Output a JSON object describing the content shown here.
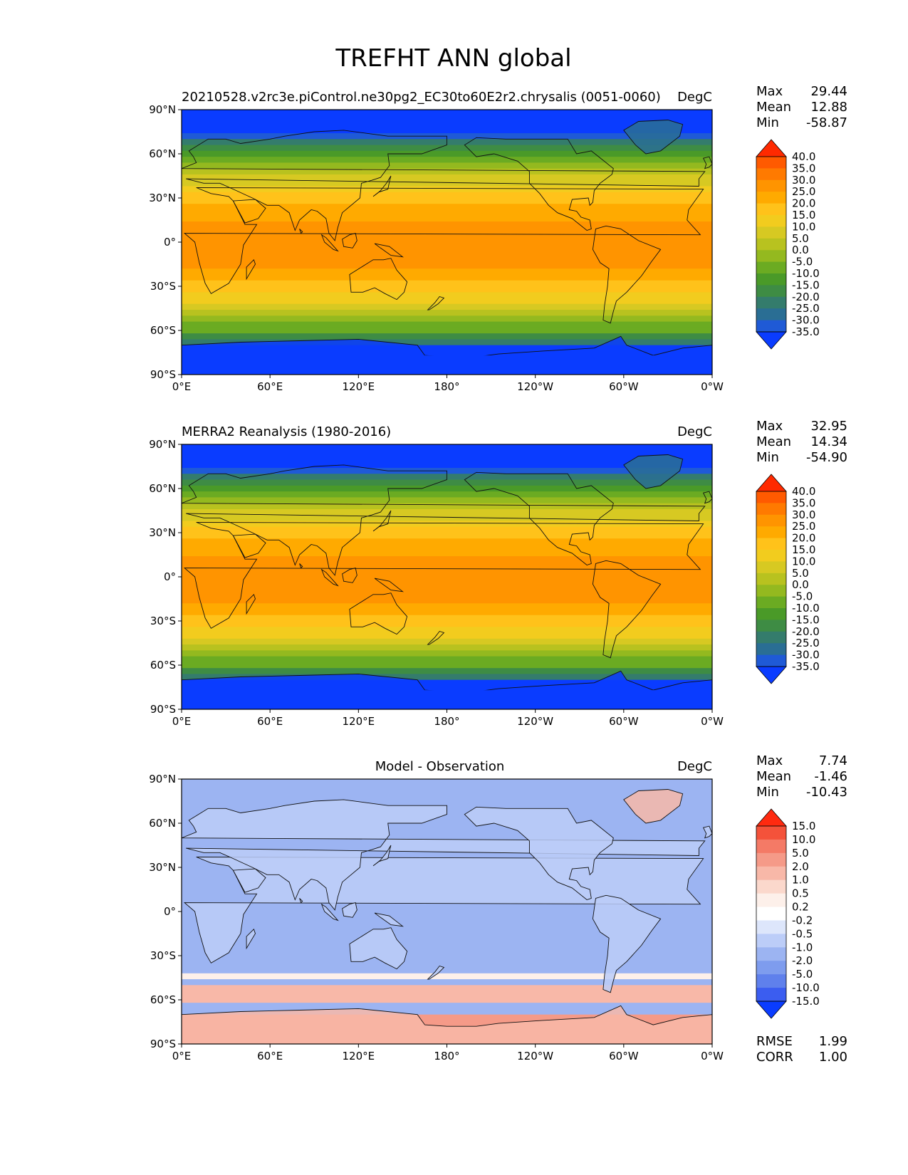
{
  "figure_title": "TREFHT ANN global",
  "lat_ticks": [
    "90°N",
    "60°N",
    "30°N",
    "0°",
    "30°S",
    "60°S",
    "90°S"
  ],
  "lon_ticks": [
    "0°E",
    "60°E",
    "120°E",
    "180°",
    "120°W",
    "60°W",
    "0°W"
  ],
  "chart_data": [
    {
      "type": "heatmap",
      "title_left": "20210528.v2rc3e.piControl.ne30pg2_EC30to60E2r2.chrysalis (0051-0060)",
      "title_center": "",
      "units": "DegC",
      "stats": {
        "Max": "29.44",
        "Mean": "12.88",
        "Min": "-58.87"
      },
      "colorbar_levels": [
        "40.0",
        "35.0",
        "30.0",
        "25.0",
        "20.0",
        "15.0",
        "10.0",
        "5.0",
        "0.0",
        "-5.0",
        "-10.0",
        "-15.0",
        "-20.0",
        "-25.0",
        "-30.0",
        "-35.0"
      ],
      "colorbar_colors": [
        "#ff2a00",
        "#ff5a00",
        "#ff7a00",
        "#ff9400",
        "#ffaa00",
        "#ffc21a",
        "#f2cc1e",
        "#d7c922",
        "#b8c21f",
        "#94b91f",
        "#6bab22",
        "#4a9a28",
        "#3e8c44",
        "#347c6c",
        "#2a6e94",
        "#1f5ad6",
        "#0a3cff"
      ],
      "xlim": [
        0,
        360
      ],
      "ylim": [
        -90,
        90
      ]
    },
    {
      "type": "heatmap",
      "title_left": "MERRA2 Reanalysis (1980-2016)",
      "title_center": "",
      "units": "DegC",
      "stats": {
        "Max": "32.95",
        "Mean": "14.34",
        "Min": "-54.90"
      },
      "colorbar_levels": [
        "40.0",
        "35.0",
        "30.0",
        "25.0",
        "20.0",
        "15.0",
        "10.0",
        "5.0",
        "0.0",
        "-5.0",
        "-10.0",
        "-15.0",
        "-20.0",
        "-25.0",
        "-30.0",
        "-35.0"
      ],
      "colorbar_colors": [
        "#ff2a00",
        "#ff5a00",
        "#ff7a00",
        "#ff9400",
        "#ffaa00",
        "#ffc21a",
        "#f2cc1e",
        "#d7c922",
        "#b8c21f",
        "#94b91f",
        "#6bab22",
        "#4a9a28",
        "#3e8c44",
        "#347c6c",
        "#2a6e94",
        "#1f5ad6",
        "#0a3cff"
      ],
      "xlim": [
        0,
        360
      ],
      "ylim": [
        -90,
        90
      ]
    },
    {
      "type": "heatmap",
      "title_left": "",
      "title_center": "Model - Observation",
      "units": "DegC",
      "stats": {
        "Max": "7.74",
        "Mean": "-1.46",
        "Min": "-10.43"
      },
      "extra_stats": {
        "RMSE": "1.99",
        "CORR": "1.00"
      },
      "colorbar_levels": [
        "15.0",
        "10.0",
        "5.0",
        "2.0",
        "1.0",
        "0.5",
        "0.2",
        "-0.2",
        "-0.5",
        "-1.0",
        "-2.0",
        "-5.0",
        "-10.0",
        "-15.0"
      ],
      "colorbar_colors": [
        "#ff2a10",
        "#f4523a",
        "#f47a66",
        "#f59a88",
        "#f8b8a8",
        "#fbd8cc",
        "#fdf0ea",
        "#ffffff",
        "#dde6fb",
        "#bccdf8",
        "#9cb4f2",
        "#7e9cee",
        "#5f80ec",
        "#3b5df0",
        "#0a3cff"
      ],
      "xlim": [
        0,
        360
      ],
      "ylim": [
        -90,
        90
      ]
    }
  ]
}
